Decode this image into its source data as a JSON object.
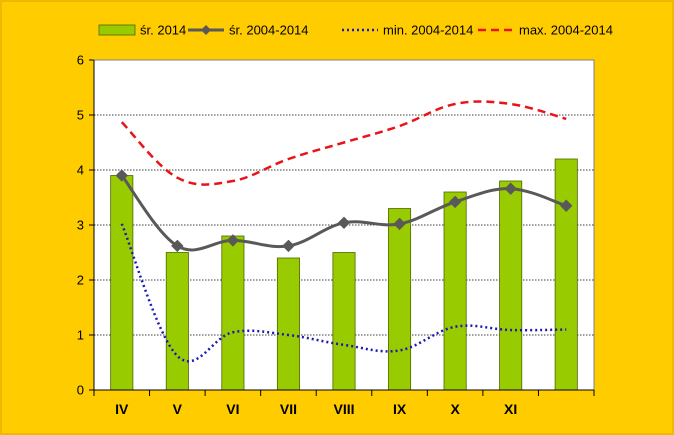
{
  "chart_data": {
    "type": "bar",
    "categories": [
      "IV",
      "V",
      "VI",
      "VII",
      "VIII",
      "IX",
      "X",
      "XI",
      ""
    ],
    "ylim": [
      0,
      6
    ],
    "yticks": [
      "0",
      "1",
      "2",
      "3",
      "4",
      "5",
      "6"
    ],
    "grid": true,
    "legend_position": "top",
    "series": [
      {
        "name": "śr. 2014",
        "kind": "bar",
        "color": "#99CC00",
        "values": [
          3.9,
          2.5,
          2.8,
          2.4,
          2.5,
          3.3,
          3.6,
          3.8,
          4.2
        ]
      },
      {
        "name": "śr. 2004-2014",
        "kind": "line-marker",
        "color": "#595959",
        "values": [
          3.9,
          2.62,
          2.72,
          2.62,
          3.04,
          3.02,
          3.42,
          3.66,
          3.35
        ]
      },
      {
        "name": "min. 2004-2014",
        "kind": "line-dotted",
        "color": "#1A1AB3",
        "values": [
          3.02,
          0.62,
          1.05,
          1.0,
          0.82,
          0.72,
          1.15,
          1.09,
          1.1
        ]
      },
      {
        "name": "max. 2004-2014",
        "kind": "line-dashed",
        "color": "#E8141A",
        "values": [
          4.87,
          3.86,
          3.8,
          4.2,
          4.5,
          4.8,
          5.2,
          5.2,
          4.93
        ]
      }
    ]
  }
}
